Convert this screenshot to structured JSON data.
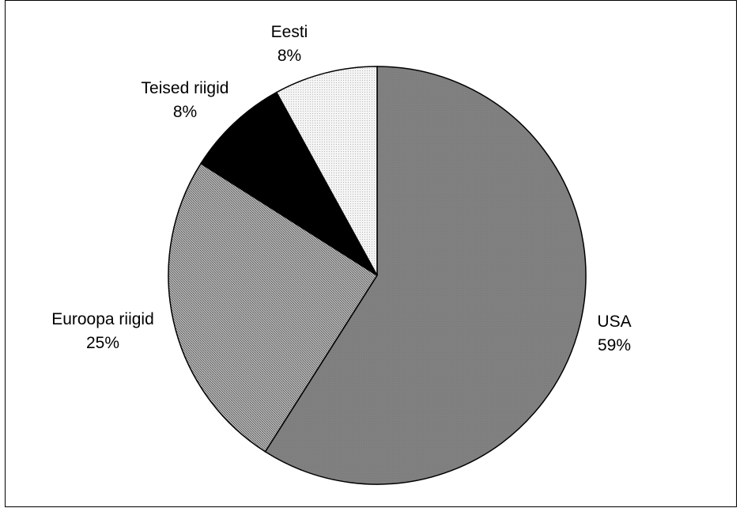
{
  "chart_data": {
    "type": "pie",
    "start_angle_deg": 0,
    "direction": "clockwise",
    "slices": [
      {
        "label": "USA",
        "percent_label": "59%",
        "value": 59,
        "fill": "pattern-usa"
      },
      {
        "label": "Euroopa riigid",
        "percent_label": "25%",
        "value": 25,
        "fill": "pattern-europe"
      },
      {
        "label": "Teised riigid",
        "percent_label": "8%",
        "value": 8,
        "fill": "#000000"
      },
      {
        "label": "Eesti",
        "percent_label": "8%",
        "value": 8,
        "fill": "pattern-estonia"
      }
    ],
    "colors": {
      "usa": "#808080",
      "europe": "#9a9a9a",
      "other": "#000000",
      "estonia": "#f0f0f0",
      "outline": "#000000"
    }
  }
}
